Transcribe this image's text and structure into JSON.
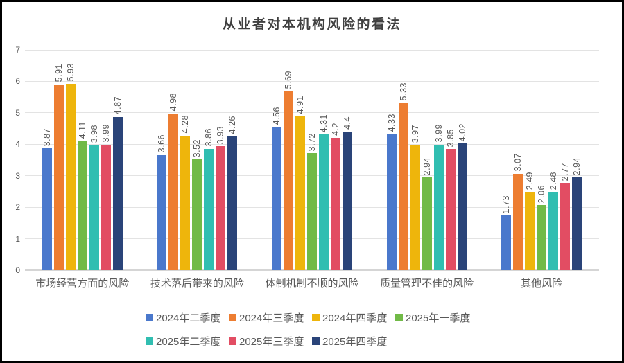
{
  "title": "从业者对本机构风险的看法",
  "chart_data": {
    "type": "bar",
    "title": "从业者对本机构风险的看法",
    "categories": [
      "市场经营方面的风险",
      "技术落后带来的风险",
      "体制机制不顺的风险",
      "质量管理不佳的风险",
      "其他风险"
    ],
    "series": [
      {
        "name": "2024年二季度",
        "color": "#4a78cc",
        "values": [
          3.87,
          3.66,
          4.56,
          4.33,
          1.73
        ]
      },
      {
        "name": "2024年三季度",
        "color": "#ed7d31",
        "values": [
          5.91,
          4.98,
          5.69,
          5.33,
          3.07
        ]
      },
      {
        "name": "2024年四季度",
        "color": "#eeb50c",
        "values": [
          5.93,
          4.28,
          4.91,
          3.97,
          2.49
        ]
      },
      {
        "name": "2025年一季度",
        "color": "#71ba47",
        "values": [
          4.11,
          3.52,
          3.72,
          2.94,
          2.06
        ]
      },
      {
        "name": "2025年二季度",
        "color": "#31beb1",
        "values": [
          3.98,
          3.86,
          4.31,
          3.99,
          2.48
        ]
      },
      {
        "name": "2025年三季度",
        "color": "#e24d63",
        "values": [
          3.99,
          3.93,
          4.2,
          3.85,
          2.77
        ]
      },
      {
        "name": "2025年四季度",
        "color": "#2a4479",
        "values": [
          4.87,
          4.26,
          4.4,
          4.02,
          2.94
        ]
      }
    ],
    "xlabel": "",
    "ylabel": "",
    "ylim": [
      0,
      7
    ],
    "yticks": [
      0,
      1,
      2,
      3,
      4,
      5,
      6,
      7
    ],
    "grid": true,
    "legend_position": "bottom",
    "legend_rows": [
      [
        0,
        1,
        2,
        3
      ],
      [
        4,
        5,
        6
      ]
    ],
    "data_labels": "rotated-vertical"
  }
}
